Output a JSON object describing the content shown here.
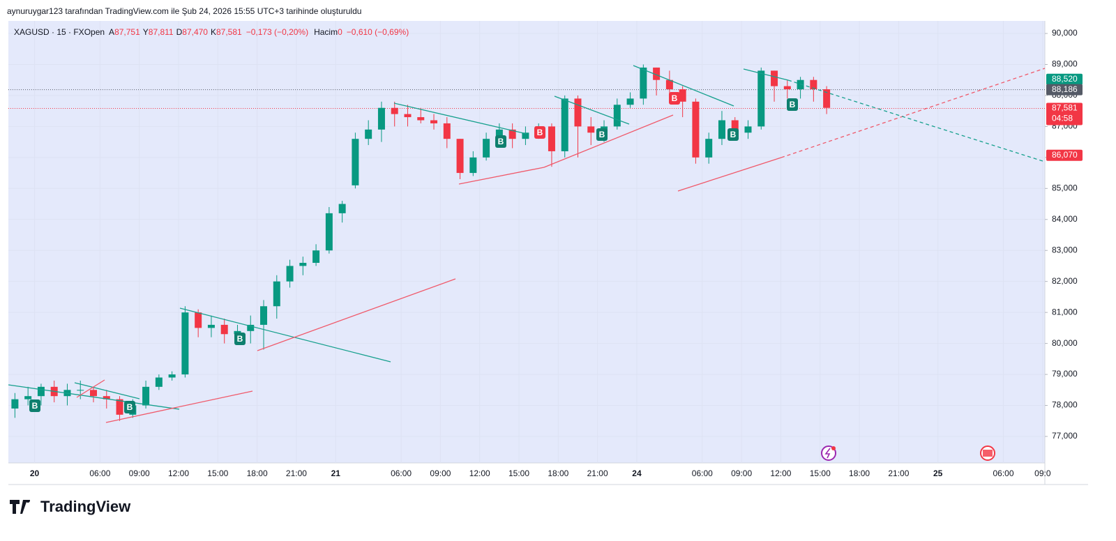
{
  "header": {
    "text": "aynuruygar123 tarafından TradingView.com ile Şub 24, 2026 15:55 UTC+3 tarihinde oluşturuldu"
  },
  "legend": {
    "symbol": "XAGUSD · 15 · FXOpen",
    "fields": [
      {
        "key": "A",
        "value": "87,751"
      },
      {
        "key": "Y",
        "value": "87,811"
      },
      {
        "key": "D",
        "value": "87,470"
      },
      {
        "key": "K",
        "value": "87,581"
      }
    ],
    "change": "−0,173 (−0,20%)",
    "volume_label": "Hacim",
    "volume": "0",
    "volume_change": "−0,610 (−0,69%)"
  },
  "chart_data": {
    "type": "candlestick",
    "open": [
      77.9,
      78.2,
      78.3,
      78.6,
      78.3,
      78.5,
      78.5,
      78.3,
      78.2,
      77.7,
      78.0,
      78.6,
      78.9,
      79.0,
      81.0,
      80.5,
      80.6,
      80.3,
      80.4,
      80.6,
      81.2,
      82.0,
      82.5,
      82.6,
      83.0,
      84.2,
      85.1,
      86.6,
      86.9,
      87.6,
      87.4,
      87.3,
      87.2,
      87.1,
      86.6,
      85.5,
      86.0,
      86.6,
      86.9,
      86.6,
      86.8,
      87.0,
      86.2,
      87.9,
      87.0,
      86.8,
      87.0,
      87.7,
      87.9,
      88.9,
      88.5,
      88.2,
      87.8,
      86.0,
      86.6,
      87.2,
      86.8,
      87.0,
      88.8,
      88.3,
      88.2,
      88.5,
      88.2
    ],
    "high": [
      78.4,
      78.6,
      78.7,
      78.8,
      78.7,
      78.8,
      78.6,
      78.5,
      78.3,
      78.2,
      78.8,
      79.0,
      79.1,
      81.2,
      81.1,
      80.9,
      80.8,
      80.6,
      80.9,
      81.4,
      82.2,
      82.7,
      82.8,
      83.2,
      84.4,
      84.6,
      86.8,
      87.2,
      87.8,
      87.8,
      87.7,
      87.6,
      87.4,
      87.3,
      86.6,
      86.2,
      86.8,
      87.1,
      87.1,
      87.0,
      87.1,
      87.1,
      88.0,
      88.0,
      87.3,
      87.2,
      87.9,
      88.1,
      89.0,
      88.9,
      88.8,
      88.3,
      87.9,
      86.8,
      87.5,
      87.3,
      87.2,
      88.9,
      88.8,
      88.5,
      88.6,
      88.6,
      88.3
    ],
    "low": [
      77.6,
      78.0,
      78.0,
      78.1,
      78.0,
      78.2,
      78.1,
      77.9,
      77.5,
      77.6,
      77.9,
      78.5,
      78.8,
      78.9,
      80.2,
      80.2,
      80.0,
      80.0,
      80.0,
      79.8,
      80.8,
      81.8,
      82.2,
      82.5,
      82.9,
      83.9,
      85.0,
      86.4,
      86.5,
      87.0,
      87.0,
      87.1,
      86.9,
      86.3,
      85.3,
      85.4,
      85.9,
      86.4,
      86.3,
      86.4,
      86.6,
      85.7,
      86.0,
      86.0,
      86.4,
      86.5,
      86.9,
      87.6,
      87.7,
      88.0,
      87.9,
      87.3,
      85.8,
      85.8,
      86.4,
      86.6,
      86.6,
      86.9,
      87.8,
      87.9,
      87.9,
      87.8,
      87.4
    ],
    "close": [
      78.2,
      78.3,
      78.6,
      78.3,
      78.5,
      78.5,
      78.3,
      78.2,
      77.7,
      78.0,
      78.6,
      78.9,
      79.0,
      81.0,
      80.5,
      80.6,
      80.3,
      80.4,
      80.6,
      81.2,
      82.0,
      82.5,
      82.6,
      83.0,
      84.2,
      84.5,
      86.6,
      86.9,
      87.6,
      87.4,
      87.3,
      87.2,
      87.1,
      86.6,
      85.5,
      86.0,
      86.6,
      86.9,
      86.6,
      86.8,
      87.0,
      86.2,
      87.9,
      87.0,
      86.8,
      87.0,
      87.7,
      87.9,
      88.9,
      88.5,
      88.2,
      87.8,
      86.0,
      86.6,
      87.2,
      86.8,
      87.0,
      88.8,
      88.3,
      88.2,
      88.5,
      88.2,
      87.6
    ],
    "up_color": "#089981",
    "down_color": "#f23645",
    "ylim": [
      76.145,
      90.405
    ],
    "yticks": [
      {
        "value": 77,
        "label": "77,000"
      },
      {
        "value": 78,
        "label": "78,000"
      },
      {
        "value": 79,
        "label": "79,000"
      },
      {
        "value": 80,
        "label": "80,000"
      },
      {
        "value": 81,
        "label": "81,000"
      },
      {
        "value": 82,
        "label": "82,000"
      },
      {
        "value": 83,
        "label": "83,000"
      },
      {
        "value": 84,
        "label": "84,000"
      },
      {
        "value": 85,
        "label": "85,000"
      },
      {
        "value": 86,
        "label": "86,000"
      },
      {
        "value": 87,
        "label": "87,000"
      },
      {
        "value": 88,
        "label": "88,000"
      },
      {
        "value": 89,
        "label": "89,000"
      },
      {
        "value": 90,
        "label": "90,000"
      }
    ],
    "xticks": [
      {
        "value": 2,
        "label": "20"
      },
      {
        "value": 7,
        "label": "06:00"
      },
      {
        "value": 10,
        "label": "09:00"
      },
      {
        "value": 13,
        "label": "12:00"
      },
      {
        "value": 16,
        "label": "15:00"
      },
      {
        "value": 19,
        "label": "18:00"
      },
      {
        "value": 22,
        "label": "21:00"
      },
      {
        "value": 25,
        "label": "21"
      },
      {
        "value": 30,
        "label": "06:00"
      },
      {
        "value": 33,
        "label": "09:00"
      },
      {
        "value": 36,
        "label": "12:00"
      },
      {
        "value": 39,
        "label": "15:00"
      },
      {
        "value": 42,
        "label": "18:00"
      },
      {
        "value": 45,
        "label": "21:00"
      },
      {
        "value": 48,
        "label": "24"
      },
      {
        "value": 53,
        "label": "06:00"
      },
      {
        "value": 56,
        "label": "09:00"
      },
      {
        "value": 59,
        "label": "12:00"
      },
      {
        "value": 62,
        "label": "15:00"
      },
      {
        "value": 65,
        "label": "18:00"
      },
      {
        "value": 68,
        "label": "21:00"
      },
      {
        "value": 71,
        "label": "25"
      },
      {
        "value": 76,
        "label": "06:00"
      },
      {
        "value": 79,
        "label": "09:0"
      }
    ],
    "price_labels": [
      {
        "value": 88.52,
        "label": "88,520",
        "color": "#089981",
        "dotted_line": false
      },
      {
        "value": 88.186,
        "label": "88,186",
        "color": "#555a66",
        "dotted_line": true
      },
      {
        "value": 87.581,
        "label": "87,581",
        "color": "#f23645",
        "dotted_line": true
      },
      {
        "value": 86.07,
        "label": "86,070",
        "color": "#f23645",
        "dotted_line": false
      }
    ],
    "countdown": "04:58",
    "markers": [
      {
        "label": "B",
        "color": "#0e7f6e"
      },
      {
        "label": "B",
        "color": "#0e7f6e"
      },
      {
        "label": "B",
        "color": "#0e7f6e"
      },
      {
        "label": "B",
        "color": "#0e7f6e"
      },
      {
        "label": "B",
        "color": "#f23645"
      },
      {
        "label": "B",
        "color": "#0e7f6e"
      },
      {
        "label": "B",
        "color": "#f23645"
      },
      {
        "label": "B",
        "color": "#0e7f6e"
      },
      {
        "label": "B",
        "color": "#0e7f6e"
      }
    ]
  },
  "brand": "TradingView"
}
